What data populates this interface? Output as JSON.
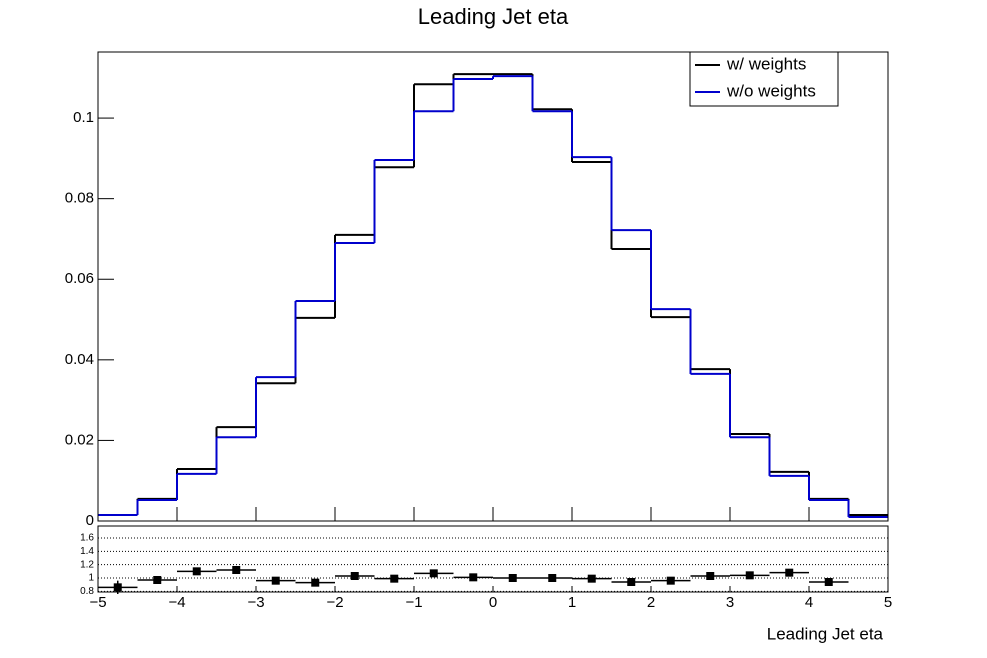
{
  "chart_data": [
    {
      "type": "histogram",
      "title": "Leading Jet eta",
      "bins": [
        -5,
        -4.5,
        -4,
        -3.5,
        -3,
        -2.5,
        -2,
        -1.5,
        -1,
        -0.5,
        0,
        0.5,
        1,
        1.5,
        2,
        2.5,
        3,
        3.5,
        4,
        4.5,
        5
      ],
      "series": [
        {
          "name": "w/ weights",
          "color": "#000000",
          "values": [
            0.0015,
            0.0055,
            0.0129,
            0.0233,
            0.0342,
            0.0504,
            0.071,
            0.0878,
            0.1084,
            0.1109,
            0.1109,
            0.1022,
            0.0891,
            0.0675,
            0.0506,
            0.0377,
            0.0216,
            0.0122,
            0.0055,
            0.0015
          ]
        },
        {
          "name": "w/o weights",
          "color": "#0000cc",
          "values": [
            0.0015,
            0.0052,
            0.0117,
            0.0208,
            0.0357,
            0.0546,
            0.069,
            0.0896,
            0.1017,
            0.1097,
            0.1104,
            0.1017,
            0.0903,
            0.0722,
            0.0526,
            0.0365,
            0.0208,
            0.0112,
            0.0052,
            0.001
          ]
        }
      ],
      "xlim": [
        -5,
        5
      ],
      "ylim": [
        0,
        0.1164
      ],
      "yticks": [
        0,
        0.02,
        0.04,
        0.06,
        0.08,
        0.1
      ],
      "legend": "upper right"
    },
    {
      "type": "ratio",
      "xlabel": "Leading Jet eta",
      "x": [
        -4.75,
        -4.25,
        -3.75,
        -3.25,
        -2.75,
        -2.25,
        -1.75,
        -1.25,
        -0.75,
        -0.25,
        0.25,
        0.75,
        1.25,
        1.75,
        2.25,
        2.75,
        3.25,
        3.75,
        4.25,
        4.75
      ],
      "values": [
        0.86,
        0.97,
        1.1,
        1.12,
        0.96,
        0.93,
        1.03,
        0.99,
        1.07,
        1.01,
        1.0,
        1.0,
        0.99,
        0.94,
        0.96,
        1.03,
        1.04,
        1.08,
        0.94,
        null
      ],
      "errors": [
        0.1,
        0.05,
        0.03,
        0.02,
        0.02,
        0.02,
        0.02,
        0.02,
        0.02,
        0.02,
        0.02,
        0.02,
        0.02,
        0.02,
        0.02,
        0.02,
        0.03,
        0.04,
        0.05,
        null
      ],
      "bin_width": 0.5,
      "xlim": [
        -5,
        5
      ],
      "xticks": [
        {
          "value": -5,
          "label": "−5"
        },
        {
          "value": -4,
          "label": "−4"
        },
        {
          "value": -3,
          "label": "−3"
        },
        {
          "value": -2,
          "label": "−2"
        },
        {
          "value": -1,
          "label": "−1"
        },
        0,
        1,
        2,
        3,
        4,
        5
      ],
      "ylim": [
        0.79,
        1.78
      ],
      "yticks": [
        0.8,
        1,
        1.2,
        1.4,
        1.6
      ],
      "grid": true,
      "color": "#000000"
    }
  ]
}
